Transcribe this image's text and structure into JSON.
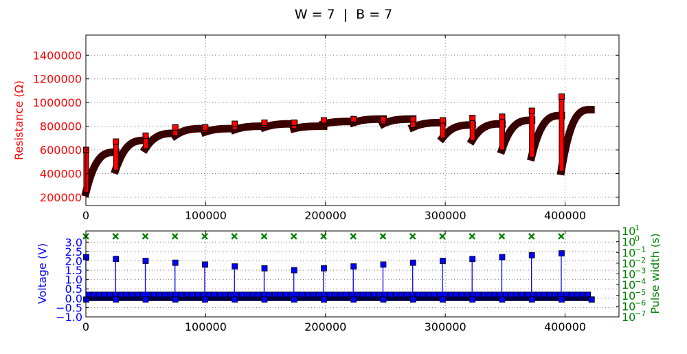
{
  "figure": {
    "title": "W = 7  |  B = 7"
  },
  "colors": {
    "resistance": "#ff0000",
    "marker_edge": "#3a0000",
    "voltage": "#0000ff",
    "pulse_width": "#008000",
    "axis": "#000000",
    "grid": "#808080"
  },
  "chart_data": [
    {
      "type": "scatter",
      "ylabel": "Resistance (Ω)",
      "xlim": [
        0,
        445000
      ],
      "ylim": [
        130000,
        1570000
      ],
      "x_ticks": [
        0,
        100000,
        200000,
        300000,
        400000
      ],
      "x_tick_labels": [
        "0",
        "100000",
        "200000",
        "300000",
        "400000"
      ],
      "y_ticks": [
        200000,
        400000,
        600000,
        800000,
        1000000,
        1200000,
        1400000
      ],
      "y_tick_labels": [
        "200000",
        "400000",
        "600000",
        "800000",
        "1000000",
        "1200000",
        "1400000"
      ],
      "grid": true,
      "segments": [
        {
          "x_start": 0,
          "x_end": 24800,
          "y_start": 240000,
          "y_end": 580000,
          "y_spike": 600000
        },
        {
          "x_start": 24800,
          "x_end": 49600,
          "y_start": 430000,
          "y_end": 680000,
          "y_spike": 670000
        },
        {
          "x_start": 49600,
          "x_end": 74400,
          "y_start": 610000,
          "y_end": 740000,
          "y_spike": 720000
        },
        {
          "x_start": 74400,
          "x_end": 99200,
          "y_start": 720000,
          "y_end": 780000,
          "y_spike": 790000
        },
        {
          "x_start": 99200,
          "x_end": 124000,
          "y_start": 750000,
          "y_end": 780000,
          "y_spike": 790000
        },
        {
          "x_start": 124000,
          "x_end": 148800,
          "y_start": 770000,
          "y_end": 800000,
          "y_spike": 820000
        },
        {
          "x_start": 148800,
          "x_end": 173600,
          "y_start": 790000,
          "y_end": 820000,
          "y_spike": 830000
        },
        {
          "x_start": 173600,
          "x_end": 198400,
          "y_start": 780000,
          "y_end": 800000,
          "y_spike": 830000
        },
        {
          "x_start": 198400,
          "x_end": 223200,
          "y_start": 820000,
          "y_end": 840000,
          "y_spike": 850000
        },
        {
          "x_start": 223200,
          "x_end": 248000,
          "y_start": 830000,
          "y_end": 860000,
          "y_spike": 860000
        },
        {
          "x_start": 248000,
          "x_end": 272800,
          "y_start": 820000,
          "y_end": 860000,
          "y_spike": 860000
        },
        {
          "x_start": 272800,
          "x_end": 297600,
          "y_start": 790000,
          "y_end": 830000,
          "y_spike": 860000
        },
        {
          "x_start": 297600,
          "x_end": 322400,
          "y_start": 700000,
          "y_end": 810000,
          "y_spike": 850000
        },
        {
          "x_start": 322400,
          "x_end": 347200,
          "y_start": 680000,
          "y_end": 820000,
          "y_spike": 870000
        },
        {
          "x_start": 347200,
          "x_end": 372000,
          "y_start": 600000,
          "y_end": 850000,
          "y_spike": 880000
        },
        {
          "x_start": 372000,
          "x_end": 396800,
          "y_start": 540000,
          "y_end": 890000,
          "y_spike": 930000
        },
        {
          "x_start": 396800,
          "x_end": 421600,
          "y_start": 420000,
          "y_end": 940000,
          "y_spike": 1050000
        }
      ]
    },
    {
      "type": "stem",
      "ylabel": "Voltage (V)",
      "xlim": [
        0,
        445000
      ],
      "ylim": [
        -1.0,
        3.6
      ],
      "x_ticks": [
        0,
        100000,
        200000,
        300000,
        400000
      ],
      "x_tick_labels": [
        "0",
        "100000",
        "200000",
        "300000",
        "400000"
      ],
      "y_ticks": [
        -1.0,
        -0.5,
        0.0,
        0.5,
        1.0,
        1.5,
        2.0,
        2.5,
        3.0
      ],
      "y_tick_labels": [
        "−1.0",
        "−0.5",
        "0.0",
        "0.5",
        "1.0",
        "1.5",
        "2.0",
        "2.5",
        "3.0"
      ],
      "grid": true,
      "read_voltage": 0.2,
      "read_x_range": [
        0,
        421600
      ],
      "write_pulses": {
        "x": [
          0,
          24800,
          49600,
          74400,
          99200,
          124000,
          148800,
          173600,
          198400,
          223200,
          248000,
          272800,
          297600,
          322400,
          347200,
          372000,
          396800
        ],
        "voltage": [
          2.2,
          2.1,
          2.0,
          1.9,
          1.8,
          1.7,
          1.6,
          1.5,
          1.6,
          1.7,
          1.8,
          1.9,
          2.0,
          2.1,
          2.2,
          2.3,
          2.4
        ]
      },
      "secondary_axis": {
        "ylabel": "Pulse width (s)",
        "scale": "log",
        "ylim_exp": [
          -7,
          1
        ],
        "tick_exponents": [
          -7,
          -6,
          -5,
          -4,
          -3,
          -2,
          -1,
          0,
          1
        ],
        "tick_labels": [
          "10",
          "10",
          "10",
          "10",
          "10",
          "10",
          "10",
          "10",
          "10"
        ],
        "tick_exp_labels": [
          "−7",
          "−6",
          "−5",
          "−4",
          "−3",
          "−2",
          "−1",
          "0",
          "1"
        ],
        "markers_exp": 0.5
      }
    }
  ]
}
